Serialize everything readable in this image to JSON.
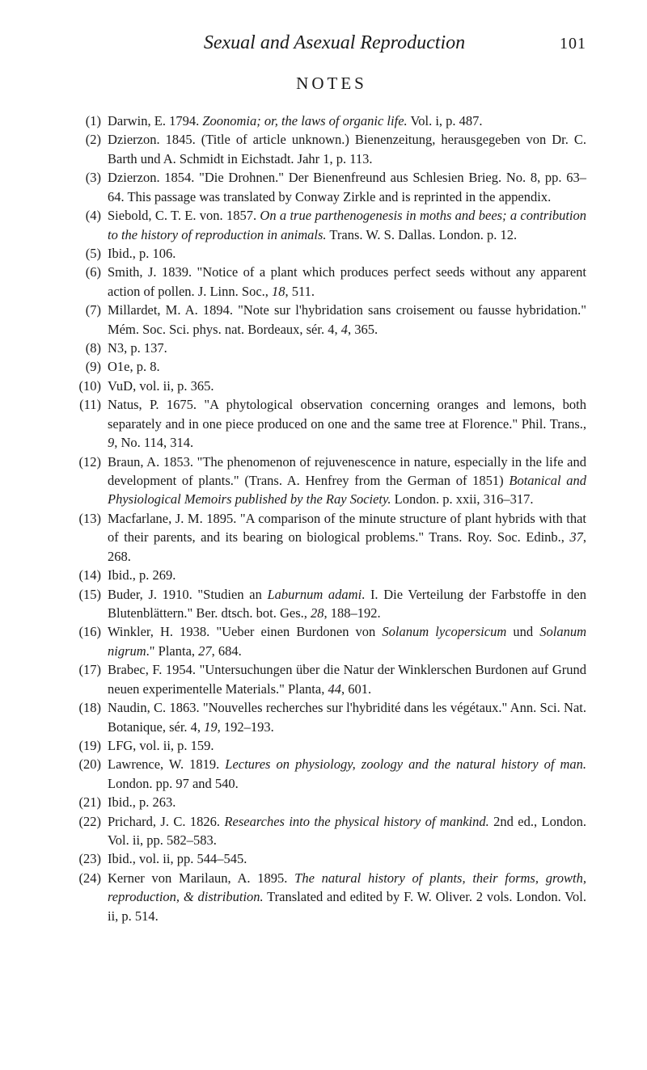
{
  "header": {
    "title": "Sexual and Asexual Reproduction",
    "pageNumber": "101"
  },
  "sectionTitle": "NOTES",
  "notes": [
    {
      "num": "(1)",
      "html": "Darwin, E. 1794. <em>Zoonomia; or, the laws of organic life.</em> Vol. i, p. 487."
    },
    {
      "num": "(2)",
      "html": "Dzierzon. 1845. (Title of article unknown.) Bienenzeitung, herausgegeben von Dr. C. Barth und A. Schmidt in Eichstadt. Jahr 1, p. 113."
    },
    {
      "num": "(3)",
      "html": "Dzierzon. 1854. \"Die Drohnen.\" Der Bienenfreund aus Schlesien Brieg. No. 8, pp. 63–64. This passage was translated by Conway Zirkle and is reprinted in the appendix."
    },
    {
      "num": "(4)",
      "html": "Siebold, C. T. E. von. 1857. <em>On a true parthenogenesis in moths and bees; a contribution to the history of reproduction in animals.</em> Trans. W. S. Dallas. London. p. 12."
    },
    {
      "num": "(5)",
      "html": "Ibid., p. 106."
    },
    {
      "num": "(6)",
      "html": "Smith, J. 1839. \"Notice of a plant which produces perfect seeds without any apparent action of pollen. J. Linn. Soc., <em>18</em>, 511."
    },
    {
      "num": "(7)",
      "html": "Millardet, M. A. 1894. \"Note sur l'hybridation sans croisement ou fausse hybridation.\" Mém. Soc. Sci. phys. nat. Bordeaux, sér. 4, <em>4</em>, 365."
    },
    {
      "num": "(8)",
      "html": "N3, p. 137."
    },
    {
      "num": "(9)",
      "html": "O1e, p. 8."
    },
    {
      "num": "(10)",
      "html": "VuD, vol. ii, p. 365."
    },
    {
      "num": "(11)",
      "html": "Natus, P. 1675. \"A phytological observation concerning oranges and lemons, both separately and in one piece produced on one and the same tree at Florence.\" Phil. Trans., <em>9</em>, No. 114, 314."
    },
    {
      "num": "(12)",
      "html": "Braun, A. 1853. \"The phenomenon of rejuvenescence in nature, especially in the life and development of plants.\" (Trans. A. Henfrey from the German of 1851) <em>Botanical and Physiological Memoirs published by the Ray Society.</em> London. p. xxii, 316–317."
    },
    {
      "num": "(13)",
      "html": "Macfarlane, J. M. 1895. \"A comparison of the minute structure of plant hybrids with that of their parents, and its bearing on biological problems.\" Trans. Roy. Soc. Edinb., <em>37</em>, 268."
    },
    {
      "num": "(14)",
      "html": "Ibid., p. 269."
    },
    {
      "num": "(15)",
      "html": "Buder, J. 1910. \"Studien an <em>Laburnum adami</em>. I. Die Verteilung der Farbstoffe in den Blutenblättern.\" Ber. dtsch. bot. Ges., <em>28</em>, 188–192."
    },
    {
      "num": "(16)",
      "html": "Winkler, H. 1938. \"Ueber einen Burdonen von <em>Solanum lycopersicum</em> und <em>Solanum nigrum</em>.\" Planta, <em>27</em>, 684."
    },
    {
      "num": "(17)",
      "html": "Brabec, F. 1954. \"Untersuchungen über die Natur der Winklerschen Burdonen auf Grund neuen experimentelle Materials.\" Planta, <em>44</em>, 601."
    },
    {
      "num": "(18)",
      "html": "Naudin, C. 1863. \"Nouvelles recherches sur l'hybridité dans les végétaux.\" Ann. Sci. Nat. Botanique, sér. 4, <em>19</em>, 192–193."
    },
    {
      "num": "(19)",
      "html": "LFG, vol. ii, p. 159."
    },
    {
      "num": "(20)",
      "html": "Lawrence, W. 1819. <em>Lectures on physiology, zoology and the natural history of man.</em> London. pp. 97 and 540."
    },
    {
      "num": "(21)",
      "html": "Ibid., p. 263."
    },
    {
      "num": "(22)",
      "html": "Prichard, J. C. 1826. <em>Researches into the physical history of mankind.</em> 2nd ed., London. Vol. ii, pp. 582–583."
    },
    {
      "num": "(23)",
      "html": "Ibid., vol. ii, pp. 544–545."
    },
    {
      "num": "(24)",
      "html": "Kerner von Marilaun, A. 1895. <em>The natural history of plants, their forms, growth, reproduction, & distribution.</em> Translated and edited by F. W. Oliver. 2 vols. London. Vol. ii, p. 514."
    }
  ]
}
